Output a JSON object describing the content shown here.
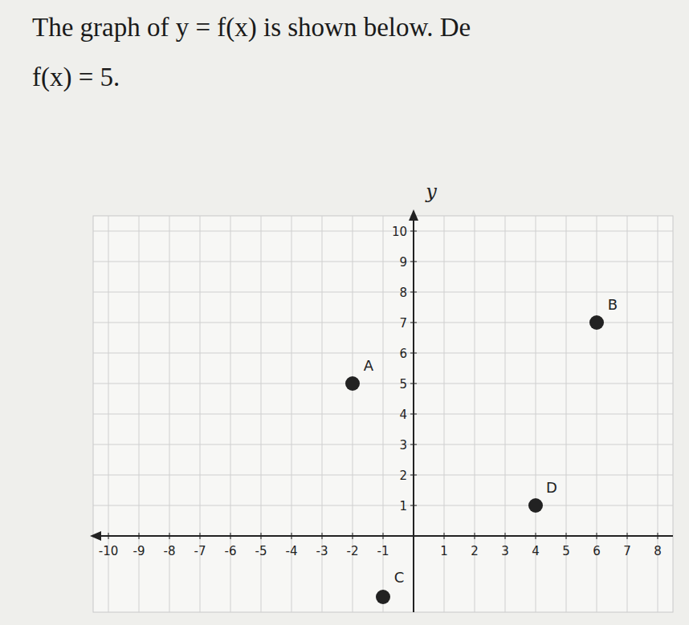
{
  "prompt_lines": [
    "The graph of y = f(x) is shown below. De",
    "f(x) = 5."
  ],
  "chart_data": {
    "type": "scatter",
    "y_label": "y",
    "x": [
      -2,
      6,
      -1,
      4
    ],
    "values": [
      5,
      7,
      -2,
      1
    ],
    "point_labels": [
      "A",
      "B",
      "C",
      "D"
    ],
    "color": "#222222",
    "marker": "circle",
    "xlim": [
      -10.5,
      8.5
    ],
    "ylim": [
      -2.5,
      10.5
    ],
    "xticks": [
      -10,
      -9,
      -8,
      -7,
      -6,
      -5,
      -4,
      -3,
      -2,
      -1,
      1,
      2,
      3,
      4,
      5,
      6,
      7,
      8
    ],
    "yticks": [
      1,
      2,
      3,
      4,
      5,
      6,
      7,
      8,
      9,
      10
    ],
    "grid": true
  }
}
